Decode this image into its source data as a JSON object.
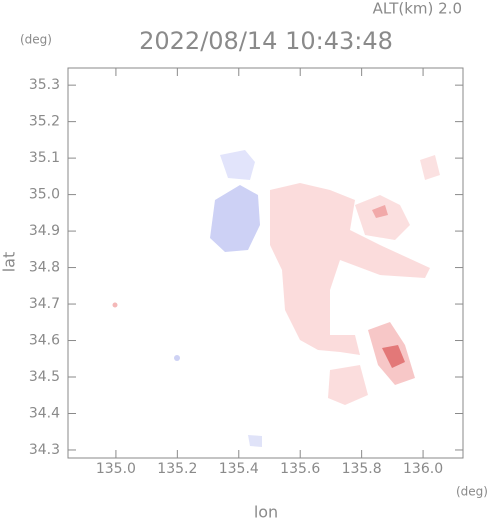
{
  "chart_data": {
    "type": "map",
    "altitude_label": "ALT(km) 2.0",
    "title": "2022/08/14 10:43:48",
    "y_unit": "(deg)",
    "x_unit": "(deg)",
    "xlabel": "lon",
    "ylabel": "lat",
    "xlim": [
      134.844,
      136.13
    ],
    "ylim": [
      34.278,
      35.347
    ],
    "xticks": [
      {
        "value": 135.0,
        "label": "135.0"
      },
      135.2,
      135.4,
      135.6,
      135.8,
      {
        "value": 136.0,
        "label": "136.0"
      }
    ],
    "yticks": [
      34.3,
      34.4,
      34.5,
      34.6,
      34.7,
      34.8,
      34.9,
      {
        "value": 35.0,
        "label": "35.0"
      },
      35.1,
      35.2,
      35.3
    ]
  }
}
